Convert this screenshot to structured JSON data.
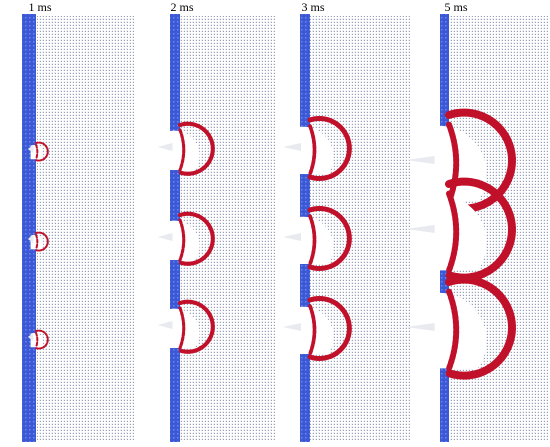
{
  "panels": [
    {
      "label": "1 ms"
    },
    {
      "label": "2 ms"
    },
    {
      "label": "3 ms"
    },
    {
      "label": "5 ms"
    }
  ]
}
